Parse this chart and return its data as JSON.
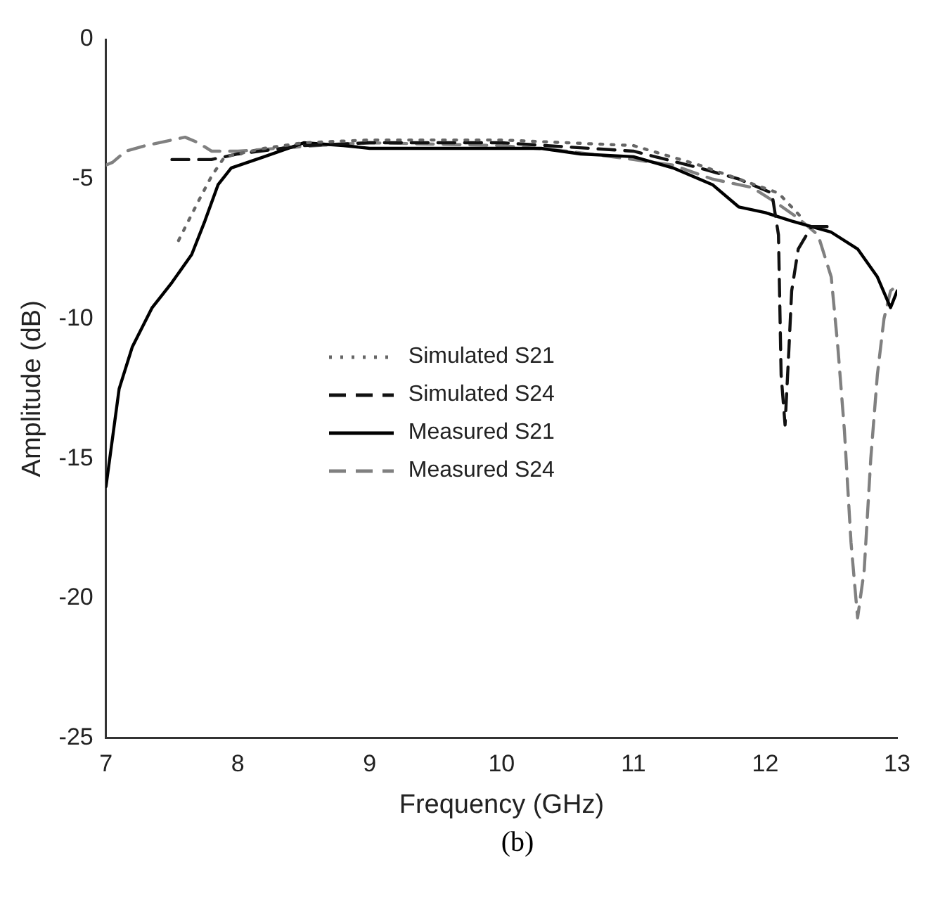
{
  "chart_data": {
    "type": "line",
    "xlabel": "Frequency (GHz)",
    "ylabel": "Amplitude (dB)",
    "xlim": [
      7,
      13
    ],
    "xticks": [
      7,
      8,
      9,
      10,
      11,
      12,
      13
    ],
    "ylim": [
      -25,
      0
    ],
    "yticks": [
      -25,
      -20,
      -15,
      -10,
      -5,
      0
    ],
    "grid": false,
    "legend": "center",
    "marker": "none",
    "annotations": [
      "(b)"
    ],
    "series": [
      {
        "name": "Simulated S21",
        "color": "#666666",
        "line_style": "dotted",
        "x": [
          7.55,
          7.7,
          7.8,
          7.9,
          8.2,
          8.5,
          9,
          10,
          11,
          11.5,
          11.8,
          12.1,
          12.3
        ],
        "values": [
          -7.2,
          -5.8,
          -4.9,
          -4.2,
          -3.9,
          -3.7,
          -3.6,
          -3.6,
          -3.8,
          -4.5,
          -5.0,
          -5.5,
          -6.5
        ]
      },
      {
        "name": "Simulated S24",
        "color": "#111111",
        "line_style": "dashed",
        "x": [
          7.5,
          7.8,
          8.0,
          8.5,
          9,
          10,
          11,
          11.5,
          11.8,
          12.05,
          12.1,
          12.12,
          12.15,
          12.18,
          12.2,
          12.25,
          12.35,
          12.5
        ],
        "values": [
          -4.3,
          -4.3,
          -4.1,
          -3.8,
          -3.7,
          -3.7,
          -4.0,
          -4.6,
          -5.0,
          -5.5,
          -7,
          -12,
          -13.8,
          -11,
          -9,
          -7.5,
          -6.7,
          -6.7
        ]
      },
      {
        "name": "Measured S21",
        "color": "#000000",
        "line_style": "solid",
        "x": [
          7.0,
          7.1,
          7.2,
          7.35,
          7.5,
          7.65,
          7.75,
          7.85,
          7.95,
          8.2,
          8.5,
          8.8,
          9,
          9.5,
          10,
          10.3,
          10.6,
          11,
          11.3,
          11.6,
          11.8,
          12,
          12.2,
          12.5,
          12.7,
          12.85,
          12.95,
          13
        ],
        "values": [
          -16,
          -12.5,
          -11,
          -9.6,
          -8.7,
          -7.7,
          -6.5,
          -5.2,
          -4.6,
          -4.2,
          -3.7,
          -3.8,
          -3.9,
          -3.9,
          -3.9,
          -3.9,
          -4.1,
          -4.2,
          -4.6,
          -5.2,
          -6.0,
          -6.2,
          -6.5,
          -6.9,
          -7.5,
          -8.5,
          -9.6,
          -9.0
        ]
      },
      {
        "name": "Measured S24",
        "color": "#808080",
        "line_style": "dashed",
        "x": [
          7.0,
          7.05,
          7.15,
          7.3,
          7.5,
          7.6,
          7.7,
          7.8,
          8.0,
          8.3,
          8.6,
          9,
          10,
          10.5,
          11,
          11.3,
          11.6,
          11.9,
          12.1,
          12.25,
          12.4,
          12.5,
          12.55,
          12.6,
          12.65,
          12.7,
          12.75,
          12.8,
          12.85,
          12.9,
          12.95,
          13
        ],
        "values": [
          -4.5,
          -4.4,
          -4.0,
          -3.8,
          -3.6,
          -3.5,
          -3.7,
          -4.0,
          -4.0,
          -3.9,
          -3.8,
          -3.7,
          -3.8,
          -4.0,
          -4.3,
          -4.5,
          -5.0,
          -5.3,
          -5.9,
          -6.4,
          -7.0,
          -8.5,
          -11,
          -14,
          -18,
          -20.7,
          -19,
          -15,
          -12,
          -10,
          -9,
          -8.8
        ]
      }
    ]
  }
}
